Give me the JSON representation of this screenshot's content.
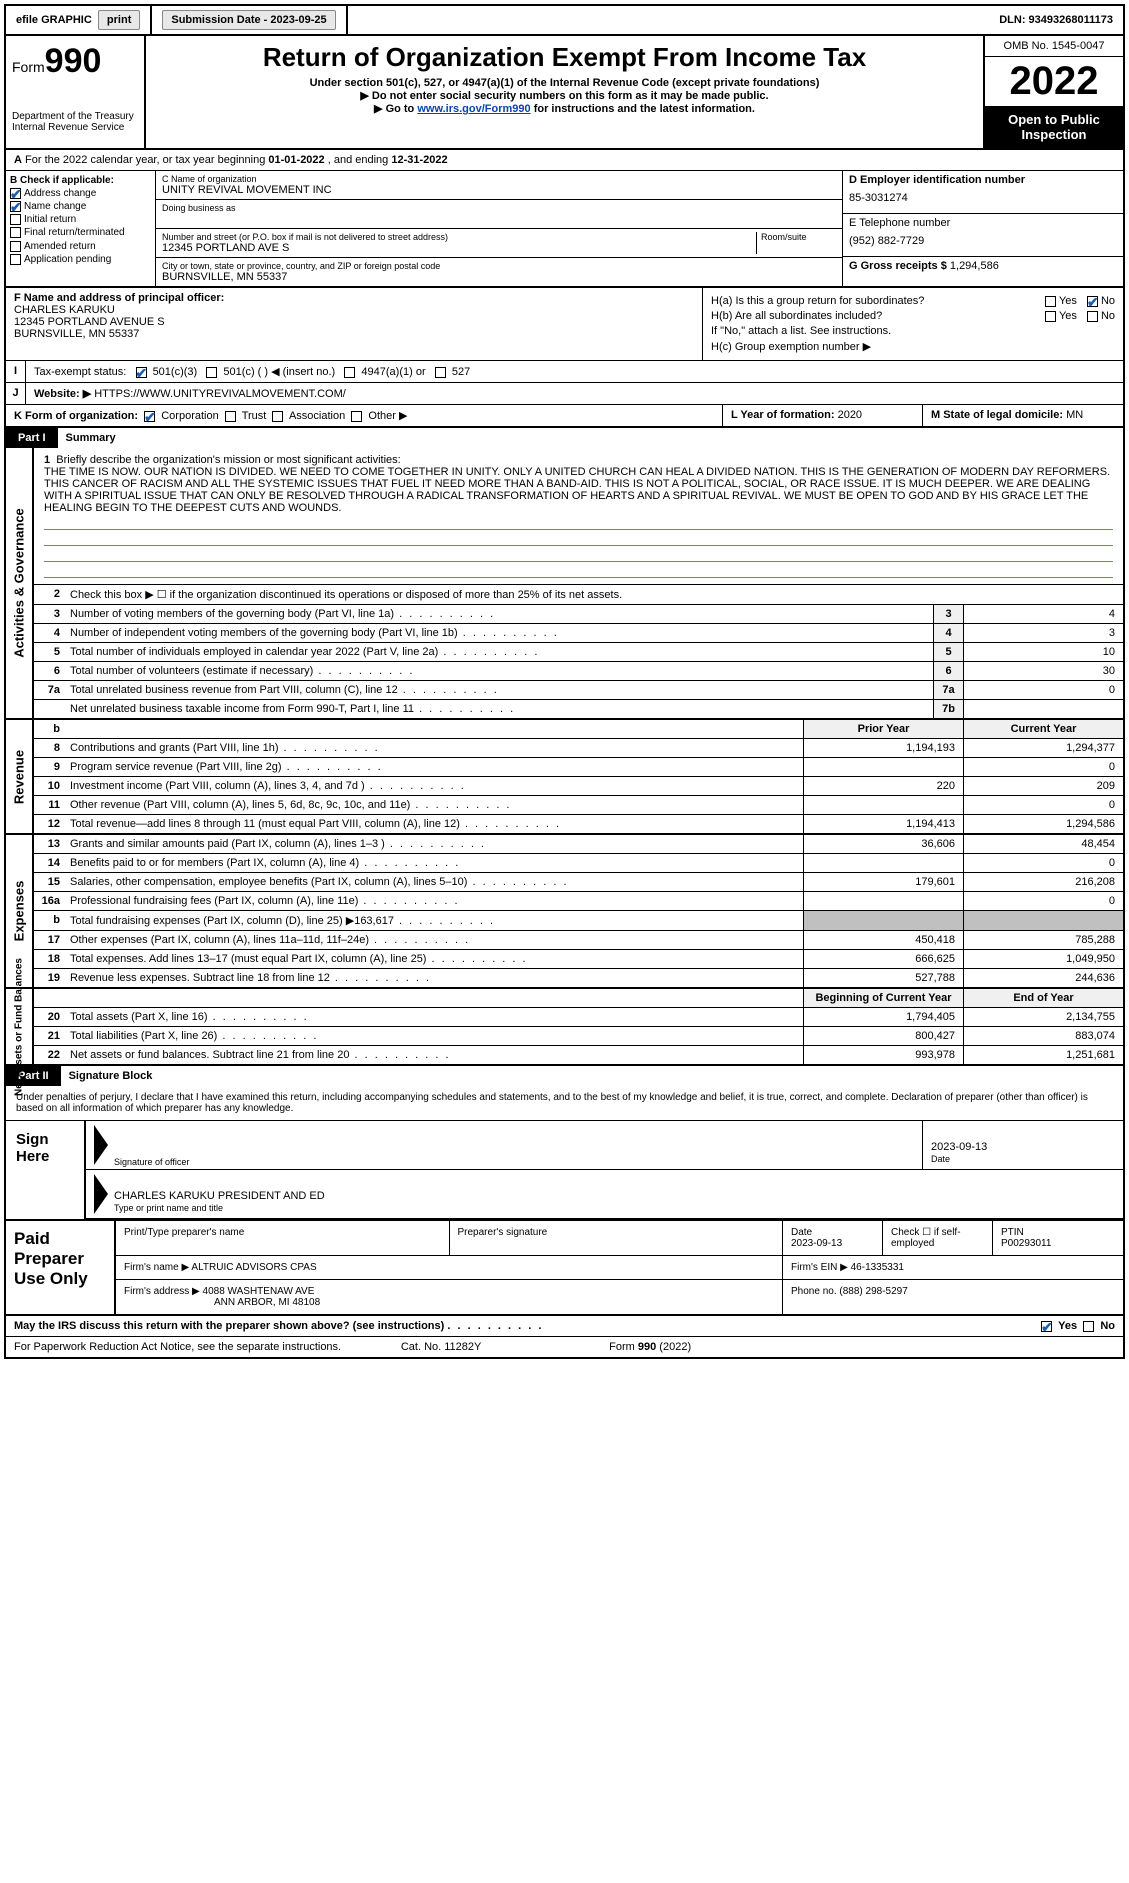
{
  "topbar": {
    "efile": "efile GRAPHIC",
    "print": "print",
    "subdate_label": "Submission Date - 2023-09-25",
    "dln": "DLN: 93493268011173"
  },
  "hdr": {
    "form_word": "Form",
    "form_num": "990",
    "dept": "Department of the Treasury",
    "irs": "Internal Revenue Service",
    "title": "Return of Organization Exempt From Income Tax",
    "sub1": "Under section 501(c), 527, or 4947(a)(1) of the Internal Revenue Code (except private foundations)",
    "sub2": "▶ Do not enter social security numbers on this form as it may be made public.",
    "sub3_a": "▶ Go to ",
    "sub3_link": "www.irs.gov/Form990",
    "sub3_b": " for instructions and the latest information.",
    "omb": "OMB No. 1545-0047",
    "year": "2022",
    "open": "Open to Public Inspection"
  },
  "period": {
    "a": "A",
    "text_a": "For the 2022 calendar year, or tax year beginning ",
    "begin": "01-01-2022",
    "mid": " , and ending ",
    "end": "12-31-2022"
  },
  "B": {
    "label": "B Check if applicable:",
    "addr": "Address change",
    "name": "Name change",
    "init": "Initial return",
    "final": "Final return/terminated",
    "amend": "Amended return",
    "app": "Application pending"
  },
  "C": {
    "lab": "C Name of organization",
    "org": "UNITY REVIVAL MOVEMENT INC",
    "dba_lab": "Doing business as",
    "addr_lab": "Number and street (or P.O. box if mail is not delivered to street address)",
    "room_lab": "Room/suite",
    "addr": "12345 PORTLAND AVE S",
    "city_lab": "City or town, state or province, country, and ZIP or foreign postal code",
    "city": "BURNSVILLE, MN  55337"
  },
  "D": {
    "lab": "D Employer identification number",
    "val": "85-3031274"
  },
  "E": {
    "lab": "E Telephone number",
    "val": "(952) 882-7729"
  },
  "G": {
    "lab": "G Gross receipts $",
    "val": "1,294,586"
  },
  "F": {
    "lab": "F  Name and address of principal officer:",
    "name": "CHARLES KARUKU",
    "addr1": "12345 PORTLAND AVENUE S",
    "addr2": "BURNSVILLE, MN  55337"
  },
  "H": {
    "a": "H(a)  Is this a group return for subordinates?",
    "b": "H(b)  Are all subordinates included?",
    "b2": "If \"No,\" attach a list. See instructions.",
    "c": "H(c)  Group exemption number ▶",
    "yes": "Yes",
    "no": "No"
  },
  "I": {
    "lab": "Tax-exempt status:",
    "o1": "501(c)(3)",
    "o2": "501(c) (  ) ◀ (insert no.)",
    "o3": "4947(a)(1) or",
    "o4": "527"
  },
  "J": {
    "lab": "Website: ▶",
    "val": "HTTPS://WWW.UNITYREVIVALMOVEMENT.COM/"
  },
  "K": {
    "lab": "K Form of organization:",
    "corp": "Corporation",
    "trust": "Trust",
    "assoc": "Association",
    "other": "Other ▶"
  },
  "L": {
    "lab": "L Year of formation:",
    "val": "2020"
  },
  "M": {
    "lab": "M State of legal domicile:",
    "val": "MN"
  },
  "part1": {
    "num": "Part I",
    "title": "Summary"
  },
  "vtabs": {
    "ag": "Activities & Governance",
    "rev": "Revenue",
    "exp": "Expenses",
    "na": "Net Assets or\nFund Balances"
  },
  "s1": {
    "lab": "Briefly describe the organization's mission or most significant activities:",
    "text": "THE TIME IS NOW. OUR NATION IS DIVIDED. WE NEED TO COME TOGETHER IN UNITY. ONLY A UNITED CHURCH CAN HEAL A DIVIDED NATION. THIS IS THE GENERATION OF MODERN DAY REFORMERS. THIS CANCER OF RACISM AND ALL THE SYSTEMIC ISSUES THAT FUEL IT NEED MORE THAN A BAND-AID. THIS IS NOT A POLITICAL, SOCIAL, OR RACE ISSUE. IT IS MUCH DEEPER. WE ARE DEALING WITH A SPIRITUAL ISSUE THAT CAN ONLY BE RESOLVED THROUGH A RADICAL TRANSFORMATION OF HEARTS AND A SPIRITUAL REVIVAL. WE MUST BE OPEN TO GOD AND BY HIS GRACE LET THE HEALING BEGIN TO THE DEEPEST CUTS AND WOUNDS."
  },
  "s2": "Check this box ▶ ☐ if the organization discontinued its operations or disposed of more than 25% of its net assets.",
  "lines_ag": [
    {
      "n": "3",
      "t": "Number of voting members of the governing body (Part VI, line 1a)",
      "box": "3",
      "v": "4"
    },
    {
      "n": "4",
      "t": "Number of independent voting members of the governing body (Part VI, line 1b)",
      "box": "4",
      "v": "3"
    },
    {
      "n": "5",
      "t": "Total number of individuals employed in calendar year 2022 (Part V, line 2a)",
      "box": "5",
      "v": "10"
    },
    {
      "n": "6",
      "t": "Total number of volunteers (estimate if necessary)",
      "box": "6",
      "v": "30"
    },
    {
      "n": "7a",
      "t": "Total unrelated business revenue from Part VIII, column (C), line 12",
      "box": "7a",
      "v": "0"
    },
    {
      "n": "",
      "t": "Net unrelated business taxable income from Form 990-T, Part I, line 11",
      "box": "7b",
      "v": ""
    }
  ],
  "colhdr": {
    "prior": "Prior Year",
    "curr": "Current Year",
    "beg": "Beginning of Current Year",
    "end": "End of Year"
  },
  "lines_rev": [
    {
      "n": "8",
      "t": "Contributions and grants (Part VIII, line 1h)",
      "p": "1,194,193",
      "c": "1,294,377"
    },
    {
      "n": "9",
      "t": "Program service revenue (Part VIII, line 2g)",
      "p": "",
      "c": "0"
    },
    {
      "n": "10",
      "t": "Investment income (Part VIII, column (A), lines 3, 4, and 7d )",
      "p": "220",
      "c": "209"
    },
    {
      "n": "11",
      "t": "Other revenue (Part VIII, column (A), lines 5, 6d, 8c, 9c, 10c, and 11e)",
      "p": "",
      "c": "0"
    },
    {
      "n": "12",
      "t": "Total revenue—add lines 8 through 11 (must equal Part VIII, column (A), line 12)",
      "p": "1,194,413",
      "c": "1,294,586"
    }
  ],
  "lines_exp": [
    {
      "n": "13",
      "t": "Grants and similar amounts paid (Part IX, column (A), lines 1–3 )",
      "p": "36,606",
      "c": "48,454"
    },
    {
      "n": "14",
      "t": "Benefits paid to or for members (Part IX, column (A), line 4)",
      "p": "",
      "c": "0"
    },
    {
      "n": "15",
      "t": "Salaries, other compensation, employee benefits (Part IX, column (A), lines 5–10)",
      "p": "179,601",
      "c": "216,208"
    },
    {
      "n": "16a",
      "t": "Professional fundraising fees (Part IX, column (A), line 11e)",
      "p": "",
      "c": "0"
    },
    {
      "n": "b",
      "t": "Total fundraising expenses (Part IX, column (D), line 25) ▶163,617",
      "p": "shade",
      "c": "shade"
    },
    {
      "n": "17",
      "t": "Other expenses (Part IX, column (A), lines 11a–11d, 11f–24e)",
      "p": "450,418",
      "c": "785,288"
    },
    {
      "n": "18",
      "t": "Total expenses. Add lines 13–17 (must equal Part IX, column (A), line 25)",
      "p": "666,625",
      "c": "1,049,950"
    },
    {
      "n": "19",
      "t": "Revenue less expenses. Subtract line 18 from line 12",
      "p": "527,788",
      "c": "244,636"
    }
  ],
  "lines_na": [
    {
      "n": "20",
      "t": "Total assets (Part X, line 16)",
      "p": "1,794,405",
      "c": "2,134,755"
    },
    {
      "n": "21",
      "t": "Total liabilities (Part X, line 26)",
      "p": "800,427",
      "c": "883,074"
    },
    {
      "n": "22",
      "t": "Net assets or fund balances. Subtract line 21 from line 20",
      "p": "993,978",
      "c": "1,251,681"
    }
  ],
  "part2": {
    "num": "Part II",
    "title": "Signature Block"
  },
  "sig": {
    "intro": "Under penalties of perjury, I declare that I have examined this return, including accompanying schedules and statements, and to the best of my knowledge and belief, it is true, correct, and complete. Declaration of preparer (other than officer) is based on all information of which preparer has any knowledge.",
    "sign_here": "Sign Here",
    "sig_of": "Signature of officer",
    "date": "2023-09-13",
    "date_lab": "Date",
    "name": "CHARLES KARUKU  PRESIDENT AND ED",
    "name_lab": "Type or print name and title"
  },
  "paid": {
    "title": "Paid Preparer Use Only",
    "h_name": "Print/Type preparer's name",
    "h_sig": "Preparer's signature",
    "h_date": "Date",
    "date": "2023-09-13",
    "h_chk": "Check ☐ if self-employed",
    "h_ptin": "PTIN",
    "ptin": "P00293011",
    "firm_lab": "Firm's name    ▶",
    "firm": "ALTRUIC ADVISORS CPAS",
    "ein_lab": "Firm's EIN ▶",
    "ein": "46-1335331",
    "addr_lab": "Firm's address ▶",
    "addr1": "4088 WASHTENAW AVE",
    "addr2": "ANN ARBOR, MI  48108",
    "ph_lab": "Phone no.",
    "ph": "(888) 298-5297"
  },
  "foot": {
    "discuss": "May the IRS discuss this return with the preparer shown above? (see instructions)",
    "yes": "Yes",
    "no": "No",
    "pra": "For Paperwork Reduction Act Notice, see the separate instructions.",
    "cat": "Cat. No. 11282Y",
    "form": "Form 990 (2022)"
  }
}
